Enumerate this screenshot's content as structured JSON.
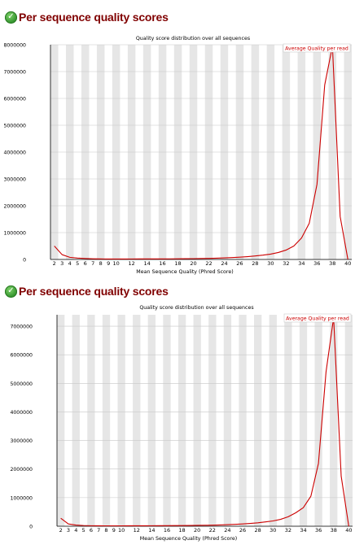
{
  "sections": [
    {
      "heading": "Per sequence quality scores",
      "icon": "check-icon",
      "status_color": "#2f8f2a",
      "heading_color": "#800000"
    },
    {
      "heading": "Per sequence quality scores",
      "icon": "check-icon",
      "status_color": "#2f8f2a",
      "heading_color": "#800000"
    }
  ],
  "chart_data": [
    {
      "type": "line",
      "title": "Quality score distribution over all sequences",
      "xlabel": "Mean Sequence Quality (Phred Score)",
      "ylabel": "",
      "xlim": [
        2,
        40
      ],
      "ylim": [
        0,
        8000000
      ],
      "x_tick_labels": [
        "2",
        "3",
        "4",
        "5",
        "6",
        "7",
        "8",
        "9",
        "10",
        "12",
        "14",
        "16",
        "18",
        "20",
        "22",
        "24",
        "26",
        "28",
        "30",
        "32",
        "34",
        "36",
        "38",
        "40"
      ],
      "y_tick_labels": [
        "0",
        "1000000",
        "2000000",
        "3000000",
        "4000000",
        "5000000",
        "6000000",
        "7000000",
        "8000000"
      ],
      "y_ticks": [
        0,
        1000000,
        2000000,
        3000000,
        4000000,
        5000000,
        6000000,
        7000000,
        8000000
      ],
      "grid": true,
      "legend_position": "top-right",
      "line_color": "#cc0000",
      "band_color": "#e6e6e6",
      "series": [
        {
          "name": "Average Quality per read",
          "x": [
            2,
            3,
            4,
            5,
            6,
            7,
            8,
            9,
            10,
            11,
            12,
            13,
            14,
            15,
            16,
            17,
            18,
            19,
            20,
            21,
            22,
            23,
            24,
            25,
            26,
            27,
            28,
            29,
            30,
            31,
            32,
            33,
            34,
            35,
            36,
            37,
            38,
            39,
            40
          ],
          "values": [
            500000,
            180000,
            80000,
            50000,
            35000,
            25000,
            20000,
            18000,
            18000,
            18000,
            19000,
            20000,
            20000,
            21000,
            22000,
            23000,
            25000,
            27000,
            30000,
            35000,
            40000,
            48000,
            58000,
            70000,
            85000,
            105000,
            130000,
            160000,
            200000,
            260000,
            350000,
            500000,
            800000,
            1350000,
            2800000,
            6500000,
            7950000,
            1600000,
            0
          ]
        }
      ]
    },
    {
      "type": "line",
      "title": "Quality score distribution over all sequences",
      "xlabel": "Mean Sequence Quality (Phred Score)",
      "ylabel": "",
      "xlim": [
        2,
        40
      ],
      "ylim": [
        0,
        7400000
      ],
      "x_tick_labels": [
        "2",
        "3",
        "4",
        "5",
        "6",
        "7",
        "8",
        "9",
        "10",
        "12",
        "14",
        "16",
        "18",
        "20",
        "22",
        "24",
        "26",
        "28",
        "30",
        "32",
        "34",
        "36",
        "38",
        "40"
      ],
      "y_tick_labels": [
        "0",
        "1000000",
        "2000000",
        "3000000",
        "4000000",
        "5000000",
        "6000000",
        "7000000"
      ],
      "y_ticks": [
        0,
        1000000,
        2000000,
        3000000,
        4000000,
        5000000,
        6000000,
        7000000
      ],
      "grid": true,
      "legend_position": "top-right",
      "line_color": "#cc0000",
      "band_color": "#e6e6e6",
      "series": [
        {
          "name": "Average Quality per read",
          "x": [
            2,
            3,
            4,
            5,
            6,
            7,
            8,
            9,
            10,
            11,
            12,
            13,
            14,
            15,
            16,
            17,
            18,
            19,
            20,
            21,
            22,
            23,
            24,
            25,
            26,
            27,
            28,
            29,
            30,
            31,
            32,
            33,
            34,
            35,
            36,
            37,
            38,
            39,
            40
          ],
          "values": [
            280000,
            80000,
            40000,
            25000,
            18000,
            15000,
            14000,
            14000,
            14000,
            15000,
            16000,
            17000,
            18000,
            19000,
            20000,
            22000,
            24000,
            26000,
            29000,
            33000,
            38000,
            45000,
            55000,
            66000,
            80000,
            98000,
            120000,
            150000,
            185000,
            240000,
            330000,
            470000,
            650000,
            1050000,
            2200000,
            5400000,
            7300000,
            1750000,
            0
          ]
        }
      ]
    }
  ]
}
